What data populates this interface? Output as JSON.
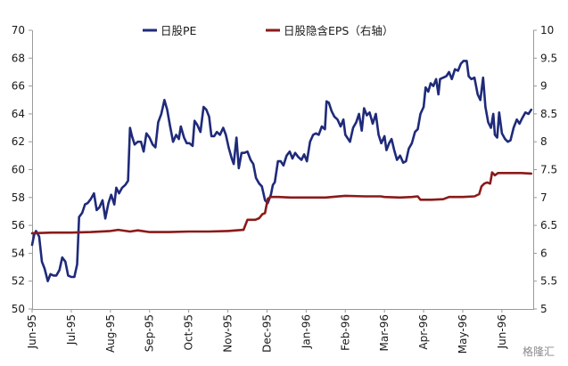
{
  "chart_data": {
    "type": "line",
    "title": "",
    "xlabel": "",
    "ylabel": "",
    "x_tick_labels": [
      "Jun-95",
      "Jul-95",
      "Aug-95",
      "Sep-95",
      "Oct-95",
      "Nov-95",
      "Dec-95",
      "Jan-96",
      "Feb-96",
      "Mar-96",
      "Apr-96",
      "May-96",
      "Jun-96"
    ],
    "x_range": [
      0,
      12.8
    ],
    "ylim_left": [
      50,
      70
    ],
    "ylim_right": [
      5,
      10
    ],
    "left_ticks": [
      "50",
      "52",
      "54",
      "56",
      "58",
      "60",
      "62",
      "64",
      "66",
      "68",
      "70"
    ],
    "right_ticks": [
      "5",
      "5.5",
      "6",
      "6.5",
      "7",
      "7.5",
      "8",
      "8.5",
      "9",
      "9.5",
      "10"
    ],
    "grid": false,
    "legend_position": "top",
    "series": [
      {
        "name": "日股PE",
        "axis": "left",
        "color": "#1f2a7a",
        "points": [
          [
            0.0,
            54.6
          ],
          [
            0.05,
            55.3
          ],
          [
            0.1,
            55.6
          ],
          [
            0.18,
            55.2
          ],
          [
            0.25,
            53.4
          ],
          [
            0.32,
            52.9
          ],
          [
            0.4,
            52.0
          ],
          [
            0.47,
            52.5
          ],
          [
            0.55,
            52.4
          ],
          [
            0.62,
            52.4
          ],
          [
            0.7,
            52.8
          ],
          [
            0.77,
            53.7
          ],
          [
            0.85,
            53.4
          ],
          [
            0.92,
            52.4
          ],
          [
            1.0,
            52.3
          ],
          [
            1.08,
            52.3
          ],
          [
            1.15,
            53.2
          ],
          [
            1.2,
            56.6
          ],
          [
            1.28,
            56.9
          ],
          [
            1.35,
            57.5
          ],
          [
            1.42,
            57.6
          ],
          [
            1.5,
            57.9
          ],
          [
            1.58,
            58.3
          ],
          [
            1.65,
            57.1
          ],
          [
            1.72,
            57.3
          ],
          [
            1.8,
            57.8
          ],
          [
            1.87,
            56.5
          ],
          [
            1.95,
            57.6
          ],
          [
            2.02,
            58.2
          ],
          [
            2.1,
            57.5
          ],
          [
            2.15,
            58.7
          ],
          [
            2.22,
            58.3
          ],
          [
            2.3,
            58.7
          ],
          [
            2.38,
            58.9
          ],
          [
            2.45,
            59.2
          ],
          [
            2.5,
            63.0
          ],
          [
            2.55,
            62.4
          ],
          [
            2.62,
            61.8
          ],
          [
            2.7,
            62.0
          ],
          [
            2.78,
            62.0
          ],
          [
            2.85,
            61.3
          ],
          [
            2.92,
            62.6
          ],
          [
            3.0,
            62.3
          ],
          [
            3.08,
            61.8
          ],
          [
            3.15,
            61.6
          ],
          [
            3.22,
            63.4
          ],
          [
            3.3,
            64.0
          ],
          [
            3.38,
            65.0
          ],
          [
            3.45,
            64.3
          ],
          [
            3.52,
            63.2
          ],
          [
            3.6,
            62.0
          ],
          [
            3.68,
            62.5
          ],
          [
            3.75,
            62.2
          ],
          [
            3.8,
            63.1
          ],
          [
            3.88,
            62.3
          ],
          [
            3.95,
            61.9
          ],
          [
            4.02,
            61.9
          ],
          [
            4.1,
            61.7
          ],
          [
            4.15,
            63.5
          ],
          [
            4.22,
            63.2
          ],
          [
            4.3,
            62.7
          ],
          [
            4.38,
            64.5
          ],
          [
            4.45,
            64.3
          ],
          [
            4.52,
            63.8
          ],
          [
            4.58,
            62.4
          ],
          [
            4.65,
            62.4
          ],
          [
            4.72,
            62.7
          ],
          [
            4.8,
            62.5
          ],
          [
            4.88,
            63.0
          ],
          [
            4.95,
            62.5
          ],
          [
            5.02,
            61.6
          ],
          [
            5.1,
            60.8
          ],
          [
            5.15,
            60.4
          ],
          [
            5.22,
            62.3
          ],
          [
            5.28,
            60.1
          ],
          [
            5.35,
            61.2
          ],
          [
            5.42,
            61.2
          ],
          [
            5.5,
            61.3
          ],
          [
            5.58,
            60.7
          ],
          [
            5.65,
            60.4
          ],
          [
            5.72,
            59.4
          ],
          [
            5.8,
            59.0
          ],
          [
            5.87,
            58.8
          ],
          [
            5.95,
            57.8
          ],
          [
            6.02,
            57.6
          ],
          [
            6.1,
            58.2
          ],
          [
            6.15,
            58.9
          ],
          [
            6.2,
            59.1
          ],
          [
            6.28,
            60.6
          ],
          [
            6.35,
            60.6
          ],
          [
            6.42,
            60.3
          ],
          [
            6.5,
            61.0
          ],
          [
            6.58,
            61.3
          ],
          [
            6.65,
            60.8
          ],
          [
            6.72,
            61.2
          ],
          [
            6.8,
            60.9
          ],
          [
            6.88,
            60.7
          ],
          [
            6.95,
            61.1
          ],
          [
            7.02,
            60.6
          ],
          [
            7.1,
            62.0
          ],
          [
            7.18,
            62.5
          ],
          [
            7.25,
            62.6
          ],
          [
            7.32,
            62.5
          ],
          [
            7.4,
            63.1
          ],
          [
            7.48,
            62.9
          ],
          [
            7.52,
            64.9
          ],
          [
            7.58,
            64.8
          ],
          [
            7.65,
            64.2
          ],
          [
            7.72,
            63.8
          ],
          [
            7.8,
            63.6
          ],
          [
            7.88,
            63.1
          ],
          [
            7.95,
            63.6
          ],
          [
            8.0,
            62.5
          ],
          [
            8.05,
            62.3
          ],
          [
            8.12,
            62.0
          ],
          [
            8.2,
            63.0
          ],
          [
            8.28,
            63.4
          ],
          [
            8.35,
            64.0
          ],
          [
            8.42,
            62.8
          ],
          [
            8.48,
            64.4
          ],
          [
            8.55,
            63.9
          ],
          [
            8.62,
            64.1
          ],
          [
            8.7,
            63.3
          ],
          [
            8.78,
            64.0
          ],
          [
            8.85,
            62.5
          ],
          [
            8.92,
            61.9
          ],
          [
            9.0,
            62.4
          ],
          [
            9.05,
            61.4
          ],
          [
            9.12,
            61.9
          ],
          [
            9.18,
            62.2
          ],
          [
            9.25,
            61.4
          ],
          [
            9.32,
            60.7
          ],
          [
            9.4,
            61.0
          ],
          [
            9.48,
            60.5
          ],
          [
            9.55,
            60.6
          ],
          [
            9.62,
            61.5
          ],
          [
            9.7,
            61.9
          ],
          [
            9.78,
            62.7
          ],
          [
            9.85,
            62.9
          ],
          [
            9.92,
            64.0
          ],
          [
            10.0,
            64.5
          ],
          [
            10.05,
            65.9
          ],
          [
            10.12,
            65.6
          ],
          [
            10.18,
            66.2
          ],
          [
            10.25,
            66.0
          ],
          [
            10.32,
            66.5
          ],
          [
            10.38,
            65.4
          ],
          [
            10.42,
            66.5
          ],
          [
            10.5,
            66.6
          ],
          [
            10.58,
            66.7
          ],
          [
            10.65,
            67.0
          ],
          [
            10.72,
            66.5
          ],
          [
            10.8,
            67.2
          ],
          [
            10.88,
            67.1
          ],
          [
            10.95,
            67.6
          ],
          [
            11.02,
            67.8
          ],
          [
            11.1,
            67.8
          ],
          [
            11.15,
            66.7
          ],
          [
            11.22,
            66.5
          ],
          [
            11.3,
            66.6
          ],
          [
            11.38,
            65.4
          ],
          [
            11.45,
            65.0
          ],
          [
            11.52,
            66.6
          ],
          [
            11.58,
            64.5
          ],
          [
            11.65,
            63.4
          ],
          [
            11.72,
            63.0
          ],
          [
            11.78,
            64.0
          ],
          [
            11.82,
            62.5
          ],
          [
            11.88,
            62.3
          ],
          [
            11.93,
            64.1
          ],
          [
            12.0,
            62.6
          ],
          [
            12.08,
            62.2
          ],
          [
            12.15,
            62.0
          ],
          [
            12.22,
            62.1
          ],
          [
            12.3,
            63.0
          ],
          [
            12.38,
            63.6
          ],
          [
            12.45,
            63.3
          ],
          [
            12.52,
            63.7
          ],
          [
            12.6,
            64.1
          ],
          [
            12.68,
            64.0
          ],
          [
            12.75,
            64.3
          ]
        ]
      },
      {
        "name": "日股隐含EPS（右轴）",
        "axis": "right",
        "color": "#8b1a1a",
        "points": [
          [
            0.0,
            6.36
          ],
          [
            0.5,
            6.37
          ],
          [
            1.0,
            6.37
          ],
          [
            1.5,
            6.38
          ],
          [
            2.0,
            6.4
          ],
          [
            2.2,
            6.42
          ],
          [
            2.5,
            6.39
          ],
          [
            2.7,
            6.41
          ],
          [
            3.0,
            6.38
          ],
          [
            3.5,
            6.38
          ],
          [
            4.0,
            6.39
          ],
          [
            4.5,
            6.39
          ],
          [
            5.0,
            6.4
          ],
          [
            5.4,
            6.42
          ],
          [
            5.5,
            6.6
          ],
          [
            5.7,
            6.6
          ],
          [
            5.8,
            6.63
          ],
          [
            5.88,
            6.7
          ],
          [
            5.95,
            6.72
          ],
          [
            6.02,
            6.98
          ],
          [
            6.1,
            7.01
          ],
          [
            6.3,
            7.01
          ],
          [
            6.6,
            7.0
          ],
          [
            7.0,
            7.0
          ],
          [
            7.5,
            7.0
          ],
          [
            8.0,
            7.03
          ],
          [
            8.5,
            7.02
          ],
          [
            8.9,
            7.02
          ],
          [
            9.0,
            7.01
          ],
          [
            9.4,
            7.0
          ],
          [
            9.7,
            7.01
          ],
          [
            9.85,
            7.02
          ],
          [
            9.92,
            6.96
          ],
          [
            10.2,
            6.96
          ],
          [
            10.5,
            6.97
          ],
          [
            10.65,
            7.01
          ],
          [
            11.0,
            7.01
          ],
          [
            11.3,
            7.02
          ],
          [
            11.42,
            7.06
          ],
          [
            11.48,
            7.2
          ],
          [
            11.55,
            7.25
          ],
          [
            11.62,
            7.27
          ],
          [
            11.7,
            7.25
          ],
          [
            11.75,
            7.45
          ],
          [
            11.82,
            7.4
          ],
          [
            11.9,
            7.44
          ],
          [
            12.0,
            7.44
          ],
          [
            12.3,
            7.44
          ],
          [
            12.5,
            7.44
          ],
          [
            12.75,
            7.43
          ]
        ]
      }
    ],
    "watermark": "格隆汇"
  }
}
